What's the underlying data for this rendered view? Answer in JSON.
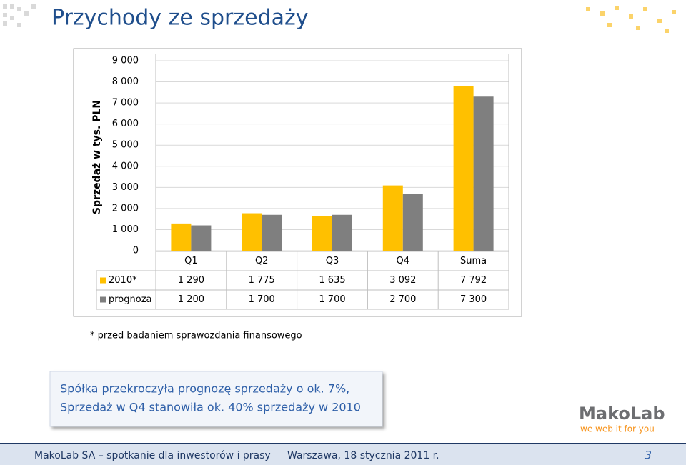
{
  "title": "Przychody ze sprzedaży",
  "chart_data": {
    "type": "bar",
    "y_label": "Sprzedaż w tys. PLN",
    "categories": [
      "Q1",
      "Q2",
      "Q3",
      "Q4",
      "Suma"
    ],
    "series": [
      {
        "name": "2010*",
        "color": "#ffc000",
        "values": [
          1290,
          1775,
          1635,
          3092,
          7792
        ],
        "value_labels": [
          "1 290",
          "1 775",
          "1 635",
          "3 092",
          "7 792"
        ]
      },
      {
        "name": "prognoza",
        "color": "#7f7f7f",
        "values": [
          1200,
          1700,
          1700,
          2700,
          7300
        ],
        "value_labels": [
          "1 200",
          "1 700",
          "1 700",
          "2 700",
          "7 300"
        ]
      }
    ],
    "ylim": [
      0,
      9000
    ],
    "yticks": [
      0,
      {
        "value": 1000,
        "label": "1 000"
      },
      {
        "value": 2000,
        "label": "2 000"
      },
      {
        "value": 3000,
        "label": "3 000"
      },
      {
        "value": 4000,
        "label": "4 000"
      },
      {
        "value": 5000,
        "label": "5 000"
      },
      {
        "value": 6000,
        "label": "6 000"
      },
      {
        "value": 7000,
        "label": "7 000"
      },
      {
        "value": 8000,
        "label": "8 000"
      },
      {
        "value": 9000,
        "label": "9 000"
      }
    ],
    "grid": true
  },
  "footnote": "* przed badaniem sprawozdania finansowego",
  "callout": [
    "Spółka przekroczyła prognozę sprzedaży o ok. 7%,",
    "Sprzedaż w Q4 stanowiła ok. 40% sprzedaży w 2010"
  ],
  "logo": {
    "name": "MakoLab",
    "tagline": "we web it for you"
  },
  "footer": {
    "left": "MakoLab SA – spotkanie dla inwestorów i prasy",
    "center": "Warszawa, 18 stycznia 2011 r.",
    "page": "3"
  }
}
